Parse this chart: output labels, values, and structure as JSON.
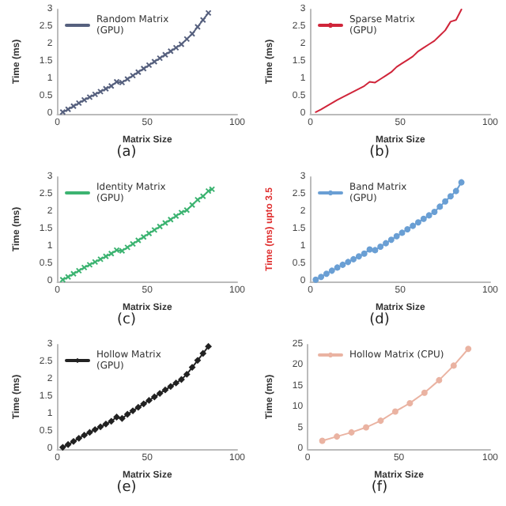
{
  "chart_data": [
    {
      "type": "line",
      "title": "(a)",
      "xlabel": "Matrix Size",
      "ylabel": "Time (ms)",
      "xlim": [
        0,
        100
      ],
      "xticks": [
        0,
        50,
        100
      ],
      "ylim": [
        0,
        3
      ],
      "yticks": [
        0,
        0.5,
        1,
        1.5,
        2,
        2.5,
        3
      ],
      "legend": "top left",
      "marker": "cross",
      "series": [
        {
          "name": "Random Matrix\n(GPU)",
          "color": "#56607e",
          "x": [
            3,
            6,
            9,
            12,
            15,
            18,
            21,
            24,
            27,
            30,
            33,
            36,
            39,
            42,
            45,
            48,
            51,
            54,
            57,
            60,
            63,
            66,
            69,
            72,
            75,
            78,
            81,
            84
          ],
          "values": [
            0.05,
            0.13,
            0.22,
            0.31,
            0.4,
            0.48,
            0.56,
            0.64,
            0.72,
            0.8,
            0.92,
            0.9,
            1.0,
            1.1,
            1.2,
            1.3,
            1.4,
            1.5,
            1.6,
            1.7,
            1.8,
            1.9,
            2.0,
            2.15,
            2.3,
            2.5,
            2.7,
            2.9
          ]
        }
      ]
    },
    {
      "type": "line",
      "title": "(b)",
      "xlabel": "Matrix Size",
      "ylabel": "Time (ms)",
      "xlim": [
        0,
        100
      ],
      "xticks": [
        0,
        50,
        100
      ],
      "ylim": [
        0,
        3
      ],
      "yticks": [
        0,
        0.5,
        1,
        1.5,
        2,
        2.5,
        3
      ],
      "legend": "top left",
      "marker": "none",
      "series": [
        {
          "name": "Sparse Matrix\n(GPU)",
          "color": "#d0253a",
          "x": [
            3,
            6,
            9,
            12,
            15,
            18,
            21,
            24,
            27,
            30,
            33,
            36,
            39,
            42,
            45,
            48,
            51,
            54,
            57,
            60,
            63,
            66,
            69,
            72,
            75,
            78,
            81,
            84
          ],
          "values": [
            0.05,
            0.13,
            0.22,
            0.31,
            0.4,
            0.48,
            0.56,
            0.64,
            0.72,
            0.8,
            0.92,
            0.9,
            1.0,
            1.1,
            1.2,
            1.35,
            1.45,
            1.55,
            1.65,
            1.8,
            1.9,
            2.0,
            2.1,
            2.25,
            2.4,
            2.65,
            2.7,
            3.0
          ]
        }
      ]
    },
    {
      "type": "line",
      "title": "(c)",
      "xlabel": "Matrix Size",
      "ylabel": "Time (ms)",
      "xlim": [
        0,
        100
      ],
      "xticks": [
        0,
        50,
        100
      ],
      "ylim": [
        0,
        3
      ],
      "yticks": [
        0,
        0.5,
        1,
        1.5,
        2,
        2.5,
        3
      ],
      "legend": "top left",
      "marker": "cross",
      "series": [
        {
          "name": "Identity Matrix\n(GPU)",
          "color": "#3cb371",
          "x": [
            3,
            6,
            9,
            12,
            15,
            18,
            21,
            24,
            27,
            30,
            33,
            36,
            39,
            42,
            45,
            48,
            51,
            54,
            57,
            60,
            63,
            66,
            69,
            72,
            75,
            78,
            81,
            84,
            86
          ],
          "values": [
            0.05,
            0.13,
            0.22,
            0.31,
            0.4,
            0.48,
            0.56,
            0.64,
            0.72,
            0.8,
            0.9,
            0.88,
            0.98,
            1.08,
            1.18,
            1.28,
            1.38,
            1.48,
            1.58,
            1.68,
            1.78,
            1.88,
            1.98,
            2.05,
            2.2,
            2.35,
            2.45,
            2.6,
            2.65
          ]
        }
      ]
    },
    {
      "type": "line",
      "title": "(d)",
      "xlabel": "Matrix Size",
      "ylabel": "Time (ms) upto 3.5",
      "xlim": [
        0,
        100
      ],
      "xticks": [
        0,
        50,
        100
      ],
      "ylim": [
        0,
        3
      ],
      "yticks": [
        0,
        0.5,
        1,
        1.5,
        2,
        2.5,
        3
      ],
      "legend": "top left",
      "marker": "circle",
      "series": [
        {
          "name": "Band Matrix\n(GPU)",
          "color": "#6a9fd4",
          "x": [
            3,
            6,
            9,
            12,
            15,
            18,
            21,
            24,
            27,
            30,
            33,
            36,
            39,
            42,
            45,
            48,
            51,
            54,
            57,
            60,
            63,
            66,
            69,
            72,
            75,
            78,
            81,
            84
          ],
          "values": [
            0.05,
            0.13,
            0.22,
            0.31,
            0.4,
            0.48,
            0.56,
            0.64,
            0.72,
            0.8,
            0.92,
            0.9,
            1.0,
            1.1,
            1.2,
            1.3,
            1.4,
            1.5,
            1.6,
            1.7,
            1.8,
            1.9,
            2.0,
            2.15,
            2.3,
            2.45,
            2.6,
            2.85
          ]
        }
      ]
    },
    {
      "type": "line",
      "title": "(e)",
      "xlabel": "Matrix Size",
      "ylabel": "Time (ms)",
      "xlim": [
        0,
        100
      ],
      "xticks": [
        0,
        50,
        100
      ],
      "ylim": [
        0,
        3
      ],
      "yticks": [
        0,
        0.5,
        1,
        1.5,
        2,
        2.5,
        3
      ],
      "legend": "top left",
      "marker": "diamond",
      "series": [
        {
          "name": "Hollow Matrix\n(GPU)",
          "color": "#222222",
          "x": [
            3,
            6,
            9,
            12,
            15,
            18,
            21,
            24,
            27,
            30,
            33,
            36,
            39,
            42,
            45,
            48,
            51,
            54,
            57,
            60,
            63,
            66,
            69,
            72,
            75,
            78,
            81,
            84
          ],
          "values": [
            0.05,
            0.13,
            0.22,
            0.31,
            0.4,
            0.48,
            0.56,
            0.64,
            0.72,
            0.8,
            0.92,
            0.88,
            1.0,
            1.1,
            1.2,
            1.3,
            1.4,
            1.5,
            1.6,
            1.7,
            1.8,
            1.9,
            2.0,
            2.15,
            2.35,
            2.55,
            2.75,
            2.95
          ]
        }
      ]
    },
    {
      "type": "line",
      "title": "(f)",
      "xlabel": "Matrix Size",
      "ylabel": "Time (ms)",
      "xlim": [
        0,
        100
      ],
      "xticks": [
        0,
        50,
        100
      ],
      "ylim": [
        0,
        25
      ],
      "yticks": [
        0,
        5,
        10,
        15,
        20,
        25
      ],
      "legend": "top left",
      "marker": "circle",
      "series": [
        {
          "name": "Hollow Matrix (CPU)",
          "color": "#eab3a2",
          "x": [
            8,
            16,
            24,
            32,
            40,
            48,
            56,
            64,
            72,
            80,
            88
          ],
          "values": [
            2,
            3,
            4,
            5.2,
            6.8,
            9,
            11,
            13.5,
            16.5,
            20,
            24
          ]
        }
      ]
    }
  ]
}
